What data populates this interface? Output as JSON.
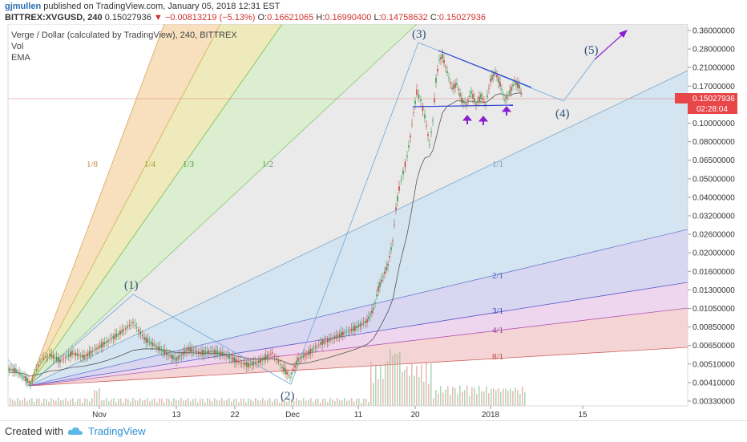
{
  "header": {
    "author": "gjmullen",
    "published": "published on TradingView.com, January 05, 2018 12:31 EST",
    "symbol": "BITTREX:XVGUSD, 240",
    "last": "0.15027936",
    "change": "−0.00813219 (−5.13%)",
    "open_label": "O:",
    "open": "0.16621065",
    "high_label": "H:",
    "high": "0.16990400",
    "low_label": "L:",
    "low": "0.14758632",
    "close_label": "C:",
    "close": "0.15027936"
  },
  "legend": {
    "title": "Verge / Dollar (calculated by TradingView), 240, BITTREX",
    "vol": "Vol",
    "ema": "EMA"
  },
  "footer": {
    "created": "Created with",
    "brand": "TradingView"
  },
  "colors": {
    "fan_orange": "#f5d6a8",
    "fan_yellow": "#e9e3a6",
    "fan_green": "#cfe8bf",
    "fan_grey": "#e6e6e6",
    "fan_blue": "#cfe1ee",
    "fan_purple": "#d4d2f0",
    "fan_pink": "#ecd2ec",
    "fan_red": "#f3cfcf",
    "price_up": "#3a9a4e",
    "price_down": "#c5473f",
    "pattern": "#2b3fd1",
    "arrow": "#8b1fd0",
    "wave": "#6aa7d8"
  },
  "chart_data": {
    "type": "line",
    "title": "Verge / Dollar (calculated by TradingView), 240, BITTREX",
    "scale": "log",
    "y_ticks": [
      "0.36000000",
      "0.28000000",
      "0.21000000",
      "0.17000000",
      "0.13000000",
      "0.10000000",
      "0.08000000",
      "0.06500000",
      "0.05000000",
      "0.04000000",
      "0.03200000",
      "0.02600000",
      "0.02000000",
      "0.01600000",
      "0.01300000",
      "0.01050000",
      "0.00850000",
      "0.00650000",
      "0.00510000",
      "0.00410000",
      "0.00330000"
    ],
    "x_ticks": [
      "Nov",
      "13",
      "22",
      "Dec",
      "11",
      "20",
      "2018",
      "15"
    ],
    "last_price_label": "0.15027936",
    "countdown_label": "02:28:04",
    "fan_labels": [
      "1/8",
      "1/4",
      "1/3",
      "1/2",
      "1/1",
      "2/1",
      "3/1",
      "4/1",
      "8/1"
    ],
    "wave_labels": [
      "(1)",
      "(2)",
      "(3)",
      "(4)",
      "(5)"
    ],
    "wave_points": [
      {
        "label": "(1)",
        "date": "2017-11-06",
        "price": 0.0135
      },
      {
        "label": "(2)",
        "date": "2017-11-30",
        "price": 0.0043
      },
      {
        "label": "(3)",
        "date": "2017-12-20",
        "price": 0.3
      },
      {
        "label": "(4)",
        "date": "2018-01-12",
        "price": 0.145
      },
      {
        "label": "(5)",
        "date": "2018-01-19",
        "price": 0.25
      }
    ],
    "series": [
      {
        "name": "Price",
        "x": [
          "2017-10-18",
          "2017-10-28",
          "2017-11-03",
          "2017-11-08",
          "2017-11-14",
          "2017-11-22",
          "2017-11-30",
          "2017-12-04",
          "2017-12-10",
          "2017-12-13",
          "2017-12-15",
          "2017-12-17",
          "2017-12-19",
          "2017-12-21",
          "2017-12-24",
          "2017-12-28",
          "2018-01-01",
          "2018-01-04",
          "2018-01-05"
        ],
        "values": [
          0.005,
          0.0043,
          0.0085,
          0.009,
          0.0062,
          0.0058,
          0.0051,
          0.0068,
          0.008,
          0.012,
          0.03,
          0.09,
          0.2,
          0.25,
          0.17,
          0.15,
          0.18,
          0.17,
          0.15
        ]
      }
    ]
  }
}
